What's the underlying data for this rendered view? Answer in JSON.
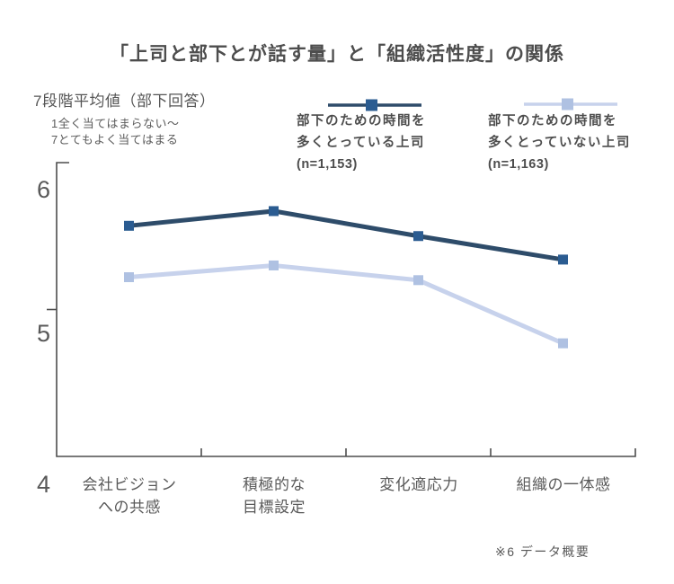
{
  "title": "「上司と部下とが話す量」と「組織活性度」の関係",
  "y_axis_title": "7段階平均値（部下回答）",
  "scale_notes": {
    "line1": "1全く当てはまらない～",
    "line2": "7とてもよく当てはまる"
  },
  "footnote": "※6 データ概要",
  "colors": {
    "dark_line": "#2e4c6a",
    "dark_marker": "#2b5c91",
    "light_line": "#c7d2ec",
    "light_marker": "#afc1e2",
    "axis": "#4d4d4d",
    "text": "#595959"
  },
  "legend": {
    "items": [
      {
        "line1": "部下のための時間を",
        "line2": "多くとっている上司",
        "n_label": "(n=1,153)"
      },
      {
        "line1": "部下のための時間を",
        "line2": "多くとっていない上司",
        "n_label": "(n=1,163)"
      }
    ]
  },
  "chart_data": {
    "type": "line",
    "title": "「上司と部下とが話す量」と「組織活性度」の関係",
    "ylabel": "7段階平均値（部下回答）",
    "xlabel": "",
    "categories": [
      "会社ビジョン\nへの共感",
      "積極的な\n目標設定",
      "変化適応力",
      "組織の一体感"
    ],
    "series": [
      {
        "name": "部下のための時間を多くとっている上司（n=1,153）",
        "values": [
          5.57,
          5.67,
          5.5,
          5.34
        ],
        "line_color": "#2e4c6a",
        "marker_color": "#2b5c91"
      },
      {
        "name": "部下のための時間を多くとっていない上司（n=1,163）",
        "values": [
          5.22,
          5.3,
          5.2,
          4.77
        ],
        "line_color": "#c7d2ec",
        "marker_color": "#afc1e2"
      }
    ],
    "ylim": [
      4,
      6
    ],
    "yticks": [
      4,
      5,
      6
    ],
    "grid": false,
    "legend_position": "top",
    "marker": "square"
  }
}
